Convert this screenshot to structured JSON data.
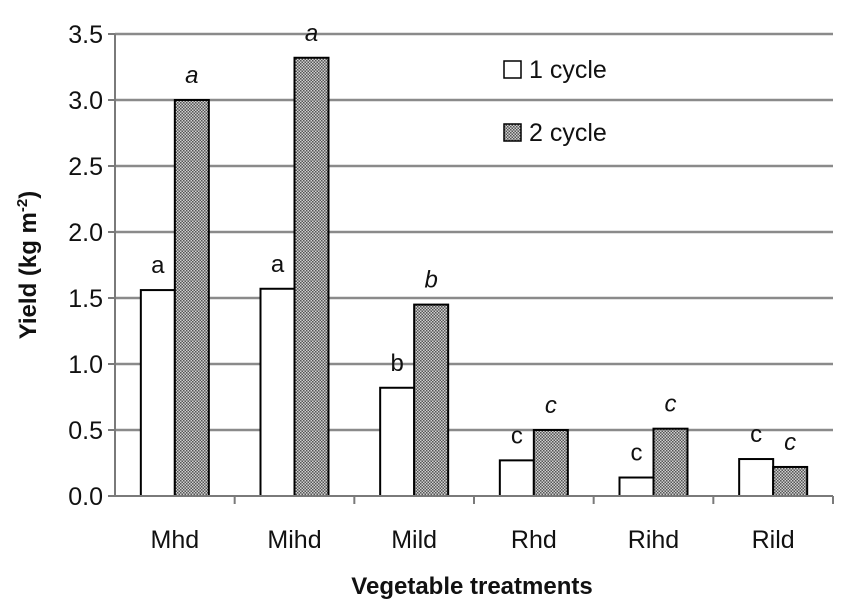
{
  "chart_data": {
    "type": "bar",
    "xlabel": "Vegetable treatments",
    "ylabel": "Yield (kg m",
    "ylabel_sup": "-2",
    "ylabel_close": ")",
    "ylim": [
      0,
      3.5
    ],
    "yticks": [
      "0.0",
      "0.5",
      "1.0",
      "1.5",
      "2.0",
      "2.5",
      "3.0",
      "3.5"
    ],
    "grid": true,
    "legend_position": "top-right",
    "categories": [
      "Mhd",
      "Mihd",
      "Mild",
      "Rhd",
      "Rihd",
      "Rild"
    ],
    "series": [
      {
        "name": "1 cycle",
        "fill": "#ffffff",
        "pattern": "none",
        "values": [
          1.56,
          1.57,
          0.82,
          0.27,
          0.14,
          0.28
        ],
        "labels": [
          "a",
          "a",
          "b",
          "c",
          "c",
          "c"
        ],
        "label_style": "normal"
      },
      {
        "name": "2 cycle",
        "fill": "#9a9a9a",
        "pattern": "checker",
        "values": [
          3.0,
          3.32,
          1.45,
          0.5,
          0.51,
          0.22
        ],
        "labels": [
          "a",
          "a",
          "b",
          "c",
          "c",
          "c"
        ],
        "label_style": "italic"
      }
    ],
    "colors": {
      "grid": "#8a8a8a",
      "axis": "#7a7a7a",
      "bar_stroke": "#000000"
    }
  }
}
